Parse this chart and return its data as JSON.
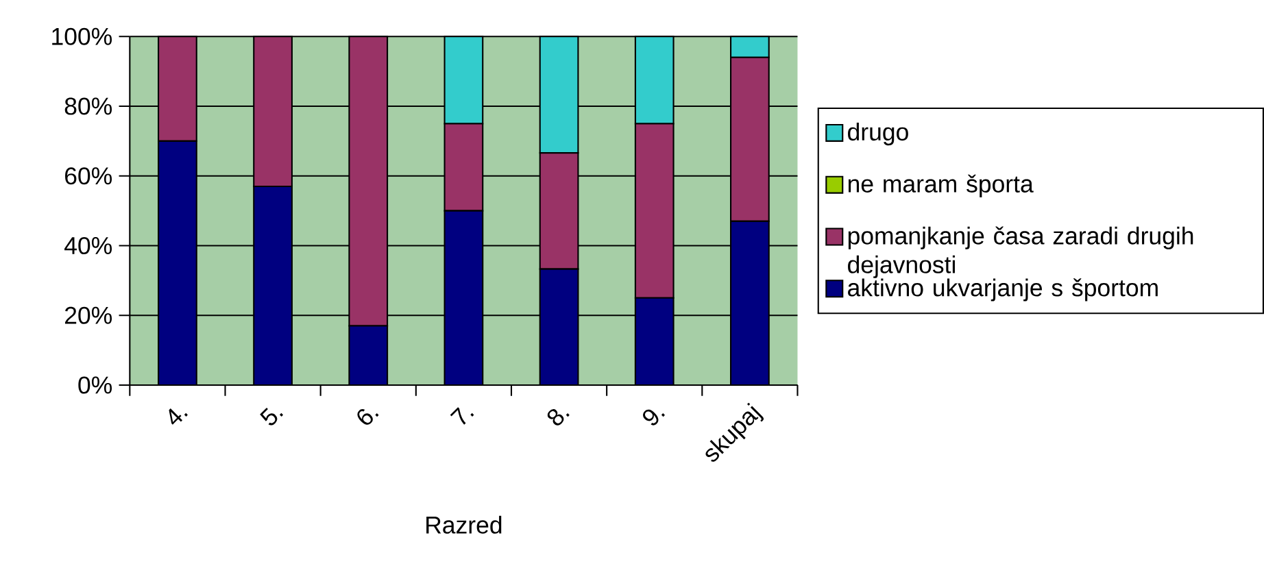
{
  "chart_data": {
    "type": "bar",
    "stacked": true,
    "xlabel": "Razred",
    "categories": [
      "4.",
      "5.",
      "6.",
      "7.",
      "8.",
      "9.",
      "skupaj"
    ],
    "series": [
      {
        "name": "aktivno ukvarjanje s športom",
        "color": "#000080",
        "values": [
          70,
          57,
          17,
          50,
          33.3,
          25,
          47
        ]
      },
      {
        "name": "pomanjkanje časa zaradi drugih dejavnosti",
        "color": "#993366",
        "values": [
          30,
          43,
          83,
          25,
          33.3,
          50,
          47
        ]
      },
      {
        "name": "ne maram športa",
        "color": "#99cc00",
        "values": [
          0,
          0,
          0,
          0,
          0,
          0,
          0
        ]
      },
      {
        "name": "drugo",
        "color": "#33cccc",
        "values": [
          0,
          0,
          0,
          25,
          33.4,
          25,
          6
        ]
      }
    ],
    "ylim": [
      0,
      100
    ],
    "yticks": [
      {
        "value": 0,
        "label": "0%"
      },
      {
        "value": 20,
        "label": "20%"
      },
      {
        "value": 40,
        "label": "40%"
      },
      {
        "value": 60,
        "label": "60%"
      },
      {
        "value": 80,
        "label": "80%"
      },
      {
        "value": 100,
        "label": "100%"
      }
    ],
    "grid": "y",
    "legend": "right"
  }
}
